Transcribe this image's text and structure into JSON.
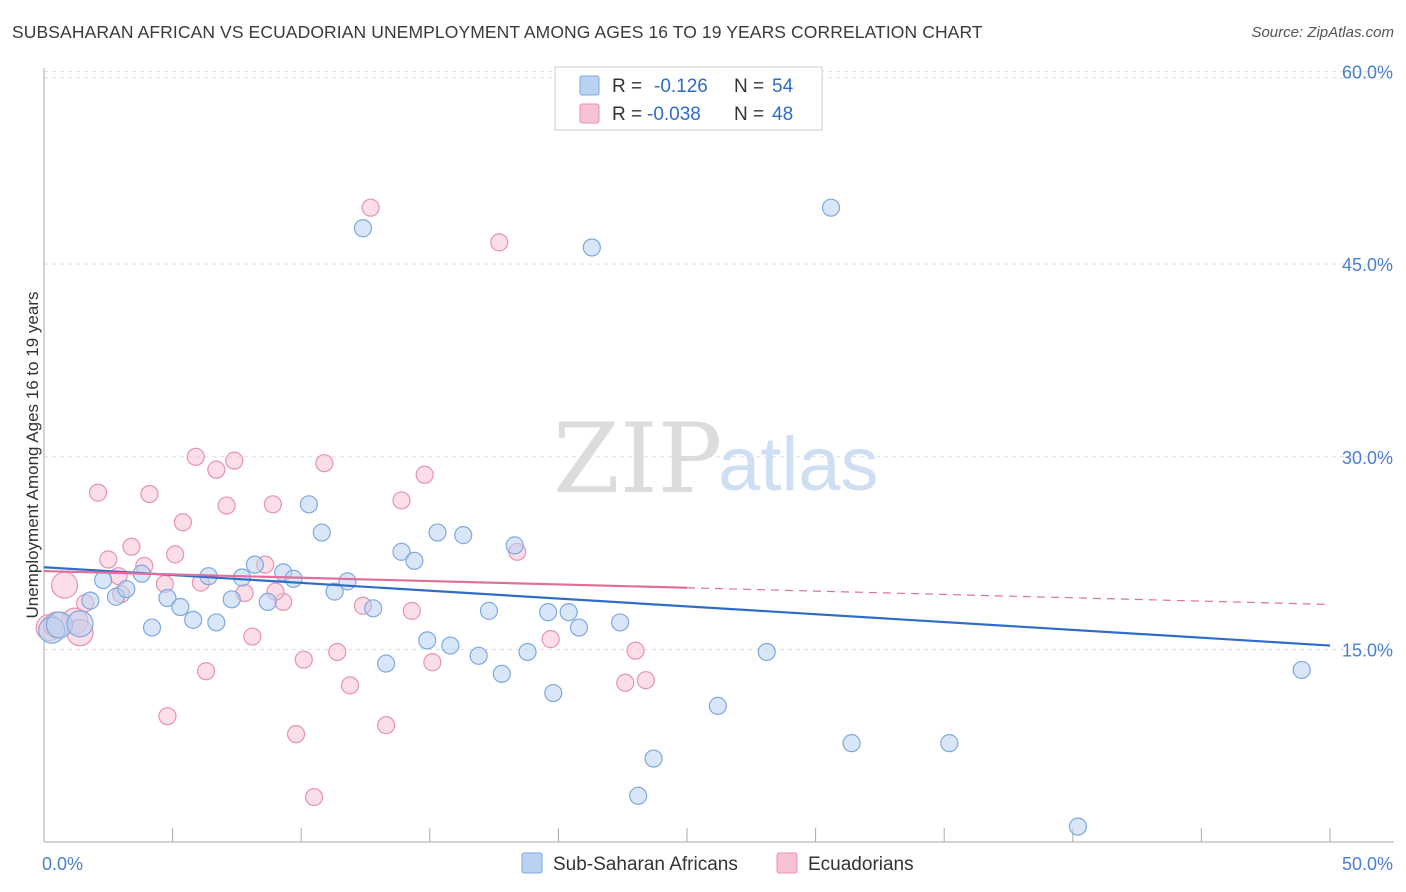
{
  "title": "SUBSAHARAN AFRICAN VS ECUADORIAN UNEMPLOYMENT AMONG AGES 16 TO 19 YEARS CORRELATION CHART",
  "source": "Source: ZipAtlas.com",
  "watermark": {
    "zip": "ZIP",
    "atlas": "atlas"
  },
  "colors": {
    "blue_fill": "#b8d2f2",
    "blue_stroke": "#7ea9de",
    "blue_line": "#2f6cc8",
    "pink_fill": "#f7c3d4",
    "pink_stroke": "#e693b0",
    "pink_line": "#e0709a",
    "tick_text": "#4a7fcf",
    "grid": "#dddddd"
  },
  "legend": {
    "r_label": "R =",
    "n_label": "N =",
    "series": [
      {
        "r": "-0.126",
        "n": "54"
      },
      {
        "r": "-0.038",
        "n": "48"
      }
    ]
  },
  "chart_data": {
    "type": "scatter",
    "xlabel": "",
    "ylabel": "Unemployment Among Ages 16 to 19 years",
    "xlim": [
      0,
      50
    ],
    "ylim": [
      0,
      61
    ],
    "x_tick_labels": [
      "0.0%",
      "50.0%"
    ],
    "y_ticks": [
      15,
      30,
      45,
      60
    ],
    "y_tick_labels": [
      "15.0%",
      "30.0%",
      "45.0%",
      "60.0%"
    ],
    "series": [
      {
        "name": "Sub-Saharan Africans",
        "points": [
          [
            0.3,
            16.5
          ],
          [
            0.6,
            16.9
          ],
          [
            1.4,
            17.0
          ],
          [
            1.8,
            18.8
          ],
          [
            2.3,
            20.4
          ],
          [
            2.8,
            19.1
          ],
          [
            3.2,
            19.7
          ],
          [
            3.8,
            20.9
          ],
          [
            4.2,
            16.7
          ],
          [
            4.8,
            19.0
          ],
          [
            5.3,
            18.3
          ],
          [
            5.8,
            17.3
          ],
          [
            6.4,
            20.7
          ],
          [
            6.7,
            17.1
          ],
          [
            7.3,
            18.9
          ],
          [
            7.7,
            20.6
          ],
          [
            8.2,
            21.6
          ],
          [
            8.7,
            18.7
          ],
          [
            9.3,
            21.0
          ],
          [
            9.7,
            20.5
          ],
          [
            10.3,
            26.3
          ],
          [
            10.8,
            24.1
          ],
          [
            11.3,
            19.5
          ],
          [
            11.8,
            20.3
          ],
          [
            12.4,
            47.8
          ],
          [
            12.8,
            18.2
          ],
          [
            13.3,
            13.9
          ],
          [
            13.9,
            22.6
          ],
          [
            14.4,
            21.9
          ],
          [
            14.9,
            15.7
          ],
          [
            15.3,
            24.1
          ],
          [
            15.8,
            15.3
          ],
          [
            16.3,
            23.9
          ],
          [
            16.9,
            14.5
          ],
          [
            17.3,
            18.0
          ],
          [
            17.8,
            13.1
          ],
          [
            18.3,
            23.1
          ],
          [
            18.8,
            14.8
          ],
          [
            19.6,
            17.9
          ],
          [
            19.8,
            11.6
          ],
          [
            20.4,
            17.9
          ],
          [
            20.8,
            16.7
          ],
          [
            21.3,
            46.3
          ],
          [
            22.4,
            17.1
          ],
          [
            23.7,
            6.5
          ],
          [
            23.1,
            3.6
          ],
          [
            26.2,
            10.6
          ],
          [
            28.1,
            14.8
          ],
          [
            30.6,
            49.4
          ],
          [
            31.4,
            7.7
          ],
          [
            35.2,
            7.7
          ],
          [
            40.2,
            1.2
          ],
          [
            48.9,
            13.4
          ],
          [
            22.0,
            58.5
          ]
        ]
      },
      {
        "name": "Ecuadorians",
        "points": [
          [
            0.2,
            16.7
          ],
          [
            0.8,
            20.0
          ],
          [
            1.2,
            17.2
          ],
          [
            1.6,
            18.6
          ],
          [
            2.1,
            27.2
          ],
          [
            2.5,
            22.0
          ],
          [
            2.9,
            20.7
          ],
          [
            3.4,
            23.0
          ],
          [
            3.9,
            21.5
          ],
          [
            4.1,
            27.1
          ],
          [
            4.7,
            20.1
          ],
          [
            5.1,
            22.4
          ],
          [
            5.4,
            24.9
          ],
          [
            5.9,
            30.0
          ],
          [
            6.3,
            13.3
          ],
          [
            6.7,
            29.0
          ],
          [
            7.1,
            26.2
          ],
          [
            7.4,
            29.7
          ],
          [
            7.8,
            19.4
          ],
          [
            8.1,
            16.0
          ],
          [
            8.6,
            21.6
          ],
          [
            8.9,
            26.3
          ],
          [
            9.3,
            18.7
          ],
          [
            9.8,
            8.4
          ],
          [
            10.1,
            14.2
          ],
          [
            10.5,
            3.5
          ],
          [
            10.9,
            29.5
          ],
          [
            11.4,
            14.8
          ],
          [
            11.9,
            12.2
          ],
          [
            12.4,
            18.4
          ],
          [
            12.7,
            49.4
          ],
          [
            13.3,
            9.1
          ],
          [
            13.9,
            26.6
          ],
          [
            14.3,
            18.0
          ],
          [
            14.8,
            28.6
          ],
          [
            15.1,
            14.0
          ],
          [
            17.7,
            46.7
          ],
          [
            18.4,
            22.6
          ],
          [
            19.7,
            15.8
          ],
          [
            22.6,
            12.4
          ],
          [
            23.0,
            14.9
          ],
          [
            4.8,
            9.8
          ],
          [
            3.0,
            19.3
          ],
          [
            1.4,
            16.3
          ],
          [
            0.5,
            16.9
          ],
          [
            6.1,
            20.2
          ],
          [
            9.0,
            19.5
          ],
          [
            23.4,
            12.6
          ]
        ]
      }
    ],
    "trend_lines": [
      {
        "series": "Sub-Saharan Africans",
        "x": [
          0,
          50
        ],
        "y": [
          21.4,
          15.3
        ]
      },
      {
        "series": "Ecuadorians",
        "solid_x": [
          0,
          25
        ],
        "solid_y": [
          21.1,
          19.8
        ],
        "dashed_x": [
          25,
          50
        ],
        "dashed_y": [
          19.8,
          18.5
        ]
      }
    ]
  }
}
